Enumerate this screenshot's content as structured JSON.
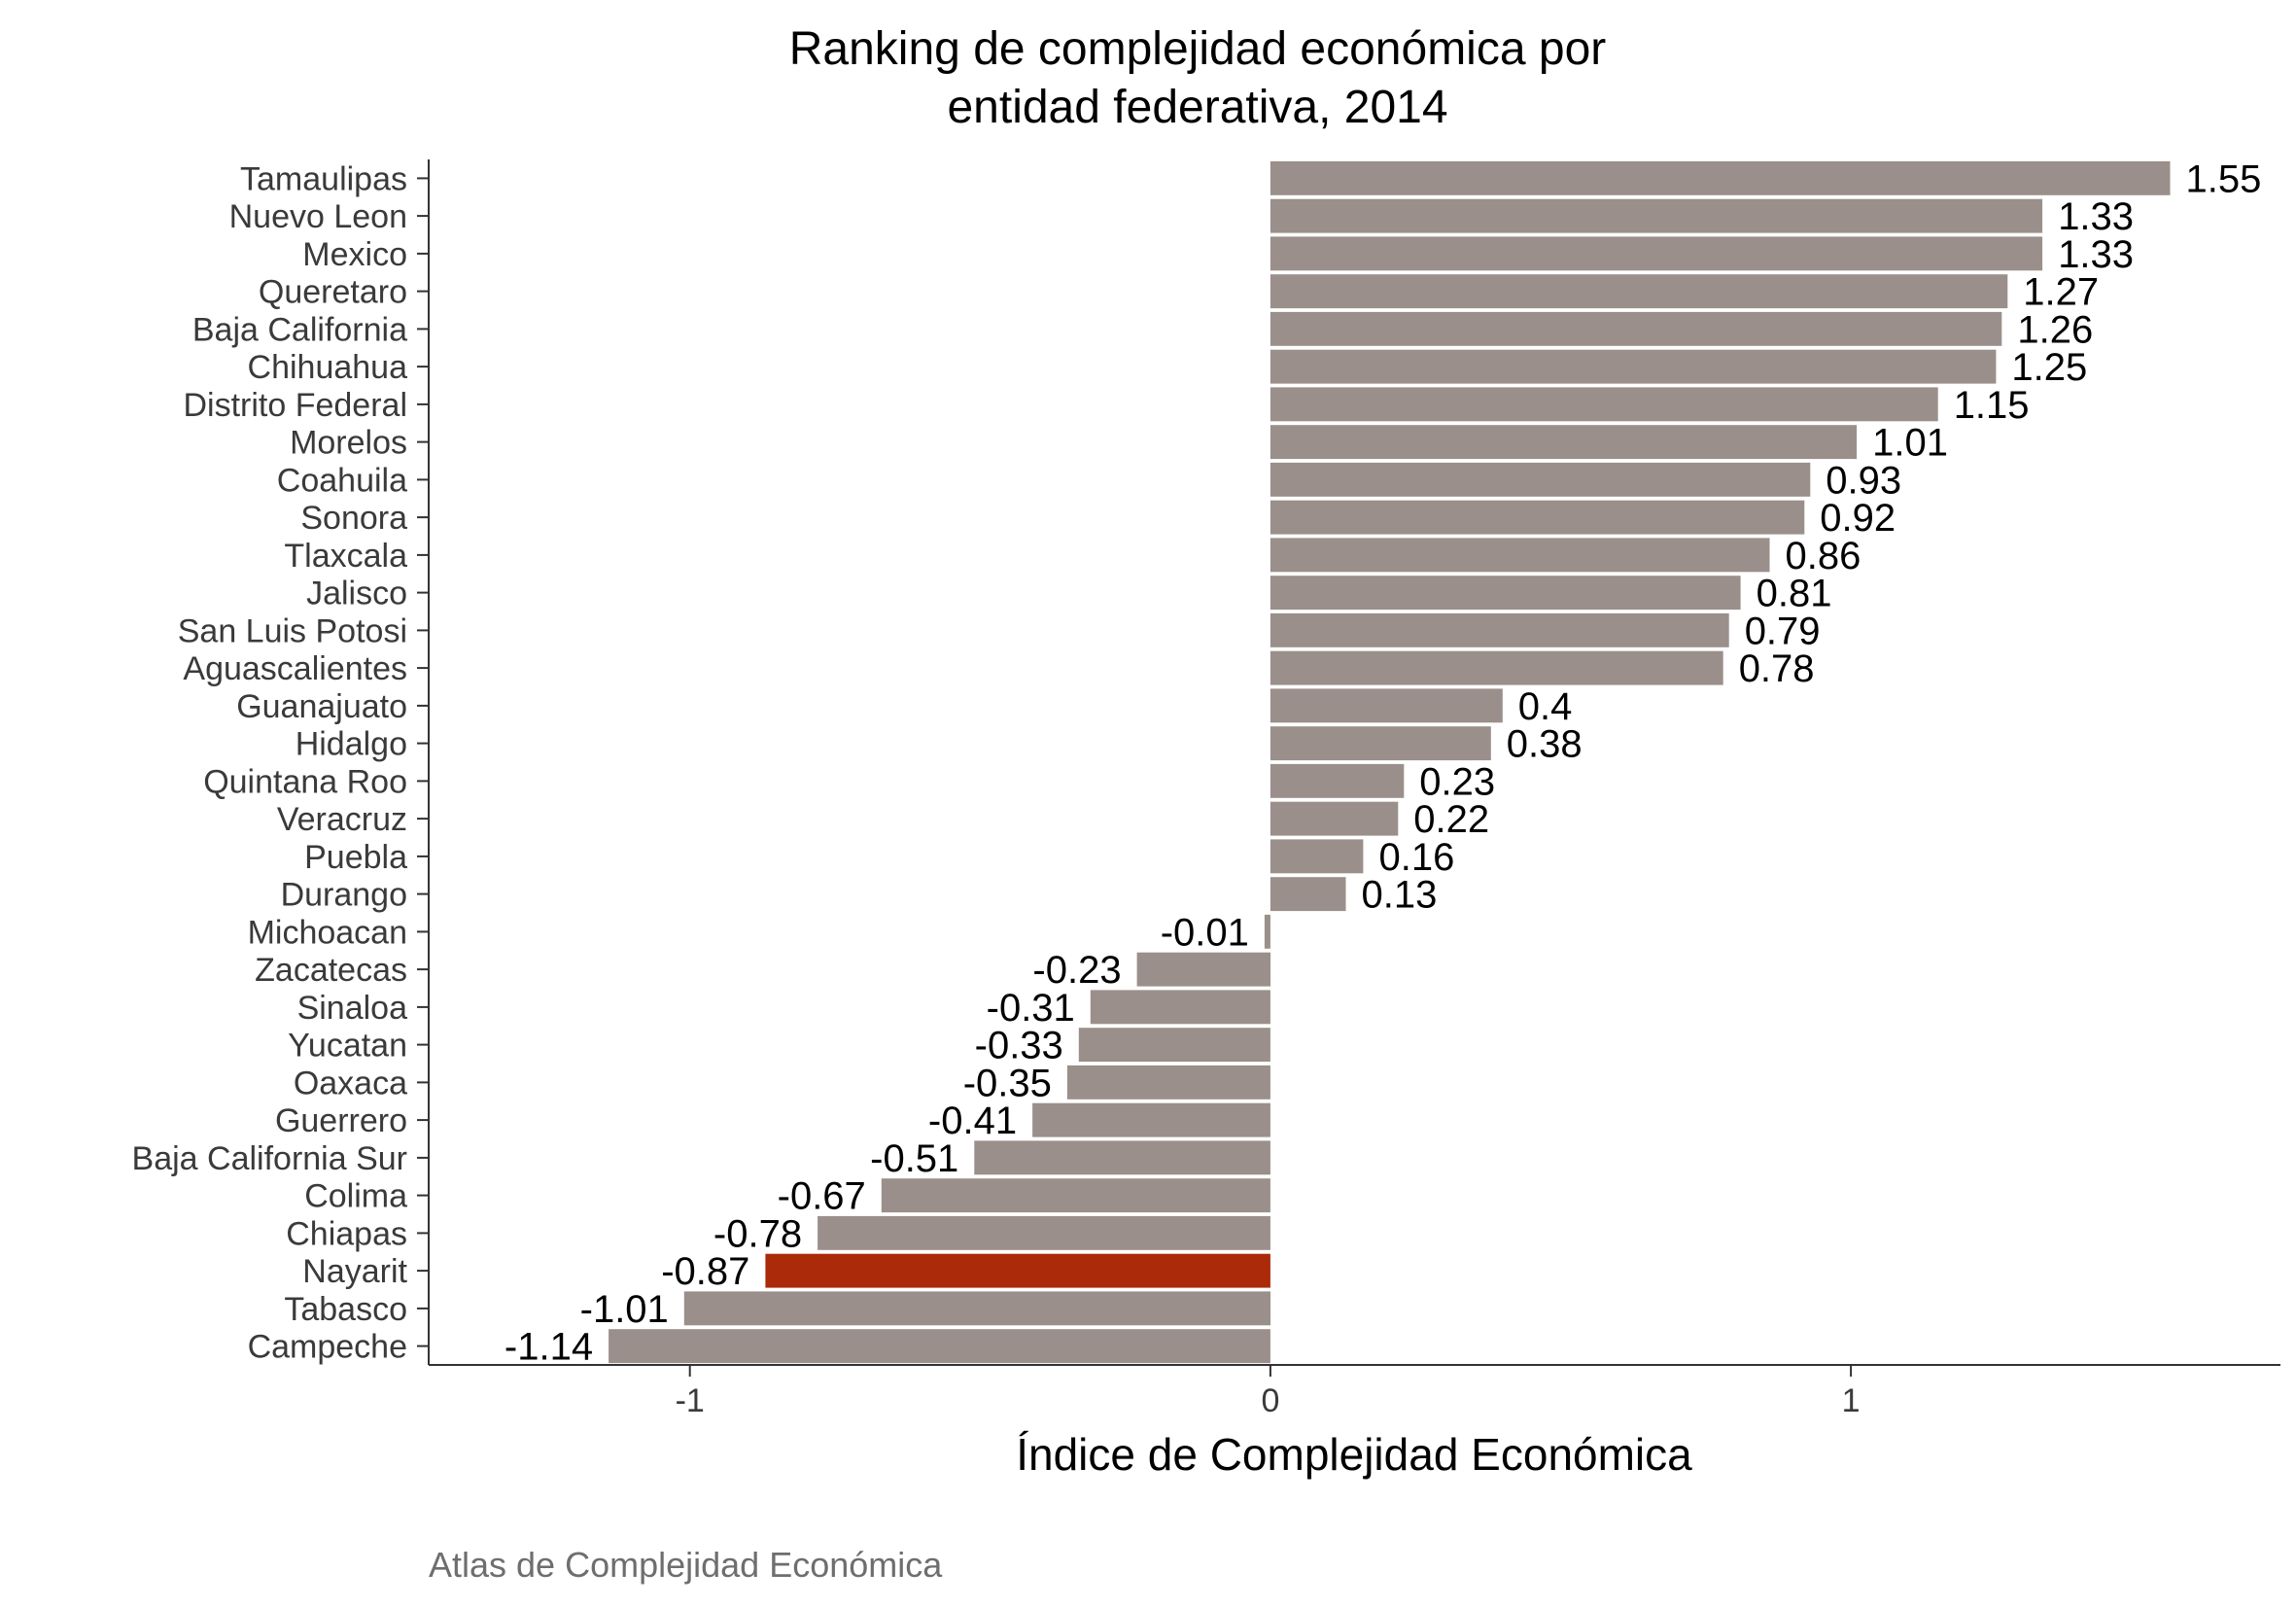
{
  "chart_data": {
    "type": "bar",
    "orientation": "horizontal",
    "title_lines": [
      "Ranking de complejidad económica por",
      "entidad federativa, 2014"
    ],
    "xlabel": "Índice de Complejidad Económica",
    "ylabel": "",
    "caption": "Atlas de Complejidad Económica",
    "xlim": [
      -1.45,
      1.74
    ],
    "xticks": [
      -1,
      0,
      1
    ],
    "xtick_labels": [
      "-1",
      "0",
      "1"
    ],
    "grid": false,
    "legend": "none",
    "bar_color": "#9a8f8a",
    "highlight_color": "#aa2a0a",
    "highlight_category": "Nayarit",
    "categories": [
      "Tamaulipas",
      "Nuevo Leon",
      "Mexico",
      "Queretaro",
      "Baja California",
      "Chihuahua",
      "Distrito Federal",
      "Morelos",
      "Coahuila",
      "Sonora",
      "Tlaxcala",
      "Jalisco",
      "San Luis Potosi",
      "Aguascalientes",
      "Guanajuato",
      "Hidalgo",
      "Quintana Roo",
      "Veracruz",
      "Puebla",
      "Durango",
      "Michoacan",
      "Zacatecas",
      "Sinaloa",
      "Yucatan",
      "Oaxaca",
      "Guerrero",
      "Baja California Sur",
      "Colima",
      "Chiapas",
      "Nayarit",
      "Tabasco",
      "Campeche"
    ],
    "values": [
      1.55,
      1.33,
      1.33,
      1.27,
      1.26,
      1.25,
      1.15,
      1.01,
      0.93,
      0.92,
      0.86,
      0.81,
      0.79,
      0.78,
      0.4,
      0.38,
      0.23,
      0.22,
      0.16,
      0.13,
      -0.01,
      -0.23,
      -0.31,
      -0.33,
      -0.35,
      -0.41,
      -0.51,
      -0.67,
      -0.78,
      -0.87,
      -1.01,
      -1.14
    ],
    "value_labels": [
      "1.55",
      "1.33",
      "1.33",
      "1.27",
      "1.26",
      "1.25",
      "1.15",
      "1.01",
      "0.93",
      "0.92",
      "0.86",
      "0.81",
      "0.79",
      "0.78",
      "0.4",
      "0.38",
      "0.23",
      "0.22",
      "0.16",
      "0.13",
      "-0.01",
      "-0.23",
      "-0.31",
      "-0.33",
      "-0.35",
      "-0.41",
      "-0.51",
      "-0.67",
      "-0.78",
      "-0.87",
      "-1.01",
      "-1.14"
    ]
  }
}
